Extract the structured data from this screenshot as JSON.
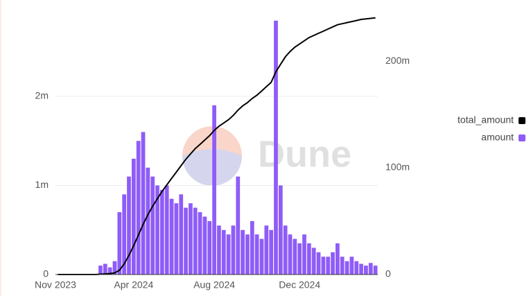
{
  "chart_data": {
    "type": "combo",
    "watermark": "Dune",
    "categories": [
      "Nov 2023",
      null,
      null,
      null,
      null,
      null,
      null,
      null,
      null,
      null,
      null,
      null,
      null,
      null,
      null,
      null,
      "Apr 2024",
      null,
      null,
      null,
      null,
      null,
      null,
      null,
      null,
      null,
      null,
      null,
      null,
      null,
      null,
      null,
      null,
      "Aug 2024",
      null,
      null,
      null,
      null,
      null,
      null,
      null,
      null,
      null,
      null,
      null,
      null,
      null,
      null,
      null,
      null,
      null,
      "Dec 2024",
      null,
      null,
      null,
      null,
      null,
      null,
      null,
      null,
      null,
      null,
      null,
      null,
      null,
      null,
      null,
      null
    ],
    "series": [
      {
        "name": "total_amount",
        "color": "#000000",
        "type": "line",
        "axis": "y2",
        "values": [
          0,
          0,
          0,
          0,
          0,
          0,
          0,
          0,
          0,
          300000,
          600000,
          900000,
          1500000,
          4000000,
          10000000,
          18000000,
          27000000,
          37000000,
          47000000,
          56000000,
          64000000,
          71000000,
          78000000,
          84000000,
          90000000,
          96000000,
          102000000,
          108000000,
          113000000,
          118000000,
          122000000,
          126000000,
          130000000,
          135000000,
          139000000,
          142000000,
          145000000,
          149000000,
          154000000,
          158000000,
          161000000,
          165000000,
          168000000,
          172000000,
          176000000,
          180000000,
          190000000,
          197000000,
          204000000,
          209000000,
          213000000,
          216000000,
          219000000,
          222000000,
          224000000,
          226000000,
          228000000,
          230000000,
          232000000,
          234000000,
          235000000,
          236000000,
          237000000,
          238000000,
          239000000,
          239500000,
          240000000,
          240500000
        ]
      },
      {
        "name": "amount",
        "color": "#8f5cf7",
        "type": "bar",
        "values": [
          0,
          0,
          0,
          0,
          0,
          0,
          0,
          0,
          0,
          100000,
          120000,
          80000,
          150000,
          700000,
          900000,
          1100000,
          1300000,
          1500000,
          1600000,
          1200000,
          1100000,
          1000000,
          950000,
          1000000,
          850000,
          800000,
          900000,
          750000,
          800000,
          750000,
          700000,
          650000,
          600000,
          1900000,
          550000,
          500000,
          450000,
          550000,
          1100000,
          500000,
          450000,
          600000,
          450000,
          400000,
          550000,
          500000,
          2850000,
          1000000,
          550000,
          450000,
          400000,
          350000,
          450000,
          350000,
          300000,
          250000,
          200000,
          200000,
          250000,
          350000,
          200000,
          150000,
          200000,
          150000,
          120000,
          100000,
          130000,
          100000
        ]
      }
    ],
    "ylim": [
      0,
      2900000
    ],
    "yticks": [
      0,
      {
        "value": 1000000,
        "label": "1m"
      },
      {
        "value": 2000000,
        "label": "2m"
      }
    ],
    "y2lim": [
      0,
      242000000
    ],
    "y2ticks": [
      0,
      {
        "value": 100000000,
        "label": "100m"
      },
      {
        "value": 200000000,
        "label": "200m"
      }
    ],
    "grid": true,
    "legend": "right"
  }
}
